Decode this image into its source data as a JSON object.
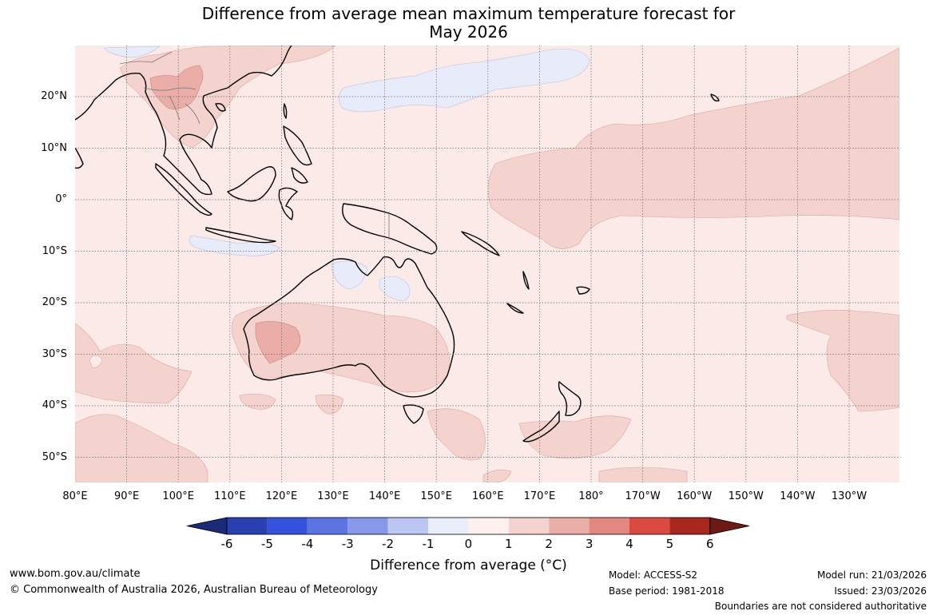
{
  "title": {
    "line1": "Difference from average mean maximum temperature forecast for",
    "line2": "May 2026"
  },
  "map": {
    "latitude_labels": [
      "20°N",
      "10°N",
      "0°",
      "10°S",
      "20°S",
      "30°S",
      "40°S",
      "50°S"
    ],
    "longitude_labels": [
      "80°E",
      "90°E",
      "100°E",
      "110°E",
      "120°E",
      "130°E",
      "140°E",
      "150°E",
      "160°E",
      "170°E",
      "180°",
      "170°W",
      "160°W",
      "150°W",
      "140°W",
      "130°W"
    ],
    "colors": {
      "ocean_base": "#fbeae8",
      "warm_1_2": "#f4d2ce",
      "warm_2_3": "#eaada8",
      "cool_0_1": "#e8ecfa",
      "coast": "#000000"
    }
  },
  "colorbar": {
    "title": "Difference from average (°C)",
    "ticks": [
      "-6",
      "-5",
      "-4",
      "-3",
      "-2",
      "-1",
      "0",
      "1",
      "2",
      "3",
      "4",
      "5",
      "6"
    ],
    "colors": [
      "#1c2a7a",
      "#2a3fb0",
      "#3452dc",
      "#5c73e2",
      "#8798e8",
      "#bcc6f2",
      "#eaeefc",
      "#fdf0ee",
      "#f4d2ce",
      "#eaada8",
      "#e28880",
      "#da4a40",
      "#a8271f",
      "#6e1a14"
    ]
  },
  "footer": {
    "website": "www.bom.gov.au/climate",
    "copyright": "© Commonwealth of Australia 2026, Australian Bureau of Meteorology",
    "model": "Model: ACCESS-S2",
    "base_period": "Base period: 1981-2018",
    "model_run": "Model run: 21/03/2026",
    "issued": "Issued: 23/03/2026",
    "disclaimer": "Boundaries are not considered authoritative"
  }
}
